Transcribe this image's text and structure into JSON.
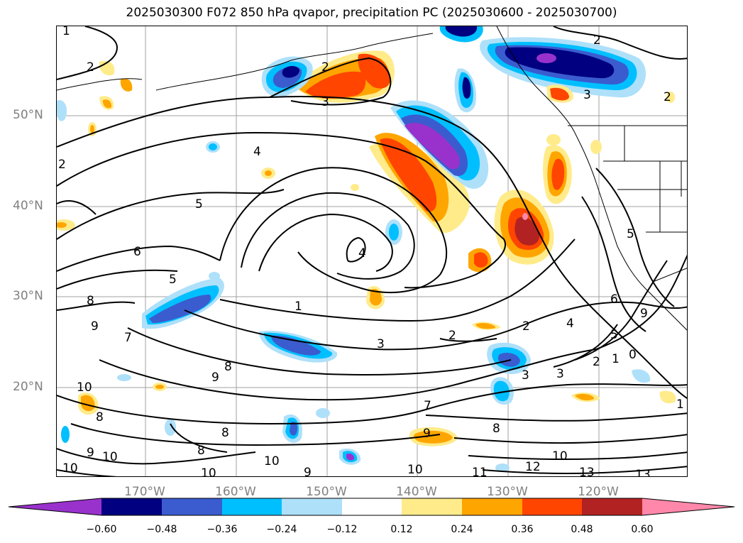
{
  "title": "2025030300 F072 850 hPa qvapor, precipitation PC (2025030600 - 2025030700)",
  "latitude_labels": [
    "50°N",
    "40°N",
    "30°N",
    "20°N"
  ],
  "longitude_labels": [
    "170°W",
    "160°W",
    "150°W",
    "140°W",
    "130°W",
    "120°W"
  ],
  "colorbar": {
    "colors": [
      "#9932CC",
      "#000080",
      "#3A5CCF",
      "#00BFFF",
      "#AEE0FA",
      "#FFFFFF",
      "#FFEB8A",
      "#FFA500",
      "#FF4500",
      "#B22222",
      "#FF88AA"
    ],
    "tick_labels": [
      "−0.60",
      "−0.48",
      "−0.36",
      "−0.24",
      "−0.12",
      "0.12",
      "0.24",
      "0.36",
      "0.48",
      "0.60"
    ]
  },
  "contour_labels": [
    {
      "text": "1"
    },
    {
      "text": "2"
    },
    {
      "text": "2"
    },
    {
      "text": "3"
    },
    {
      "text": "2"
    },
    {
      "text": "3"
    },
    {
      "text": "2"
    },
    {
      "text": "2"
    },
    {
      "text": "4"
    },
    {
      "text": "5"
    },
    {
      "text": "6"
    },
    {
      "text": "5"
    },
    {
      "text": "8"
    },
    {
      "text": "9"
    },
    {
      "text": "7"
    },
    {
      "text": "4"
    },
    {
      "text": "1"
    },
    {
      "text": "3"
    },
    {
      "text": "2"
    },
    {
      "text": "2"
    },
    {
      "text": "4"
    },
    {
      "text": "6"
    },
    {
      "text": "5"
    },
    {
      "text": "2"
    },
    {
      "text": "1"
    },
    {
      "text": "0"
    },
    {
      "text": "3"
    },
    {
      "text": "3"
    },
    {
      "text": "7"
    },
    {
      "text": "8"
    },
    {
      "text": "9"
    },
    {
      "text": "10"
    },
    {
      "text": "12"
    },
    {
      "text": "13"
    },
    {
      "text": "13"
    },
    {
      "text": "11"
    },
    {
      "text": "10"
    },
    {
      "text": "10"
    },
    {
      "text": "10"
    },
    {
      "text": "9"
    },
    {
      "text": "8"
    },
    {
      "text": "8"
    },
    {
      "text": "9"
    },
    {
      "text": "10"
    },
    {
      "text": "9"
    },
    {
      "text": "10"
    },
    {
      "text": "8"
    },
    {
      "text": "8"
    },
    {
      "text": "10"
    },
    {
      "text": "5"
    },
    {
      "text": "9"
    },
    {
      "text": "1"
    }
  ]
}
